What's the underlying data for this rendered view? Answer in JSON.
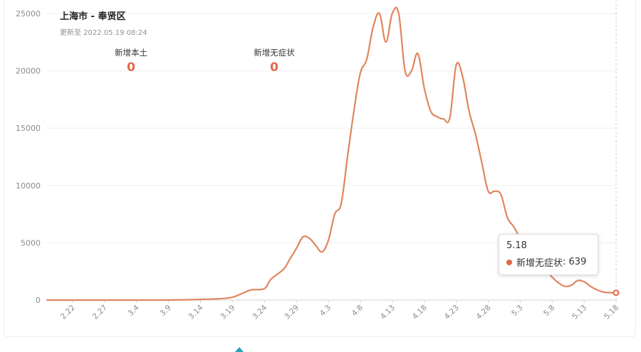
{
  "header": {
    "title": "上海市 - 奉贤区",
    "updated": "更新至 2022.05.19 08:24"
  },
  "stats": [
    {
      "label": "新增本土",
      "value": "0"
    },
    {
      "label": "新增无症状",
      "value": "0"
    }
  ],
  "tooltip": {
    "date": "5.18",
    "series_label": "新增无症状",
    "value_text": "639"
  },
  "colors": {
    "line": "#e0855e",
    "accent": "#e0684b",
    "grid": "#efefef",
    "axis_text": "#8a8a8a"
  },
  "chart_data": {
    "type": "line",
    "yticks": [
      0,
      5000,
      10000,
      15000,
      20000,
      25000
    ],
    "ylim": [
      0,
      25000
    ],
    "xticks": [
      "2.22",
      "2.27",
      "3.4",
      "3.9",
      "3.14",
      "3.19",
      "3.24",
      "3.29",
      "4.3",
      "4.8",
      "4.13",
      "4.18",
      "4.23",
      "4.28",
      "5.3",
      "5.8",
      "5.13",
      "5.18"
    ],
    "grid": true,
    "series": [
      {
        "name": "新增无症状",
        "points": [
          [
            "2.18",
            0
          ],
          [
            "2.22",
            0
          ],
          [
            "2.27",
            0
          ],
          [
            "3.1",
            0
          ],
          [
            "3.4",
            0
          ],
          [
            "3.9",
            10
          ],
          [
            "3.12",
            30
          ],
          [
            "3.14",
            60
          ],
          [
            "3.17",
            120
          ],
          [
            "3.19",
            250
          ],
          [
            "3.21",
            700
          ],
          [
            "3.22",
            900
          ],
          [
            "3.24",
            1000
          ],
          [
            "3.25",
            1800
          ],
          [
            "3.27",
            2700
          ],
          [
            "3.28",
            3600
          ],
          [
            "3.29",
            4500
          ],
          [
            "3.30",
            5500
          ],
          [
            "3.31",
            5400
          ],
          [
            "4.1",
            4800
          ],
          [
            "4.2",
            4200
          ],
          [
            "4.3",
            5200
          ],
          [
            "4.4",
            7500
          ],
          [
            "4.5",
            8400
          ],
          [
            "4.6",
            12500
          ],
          [
            "4.7",
            16500
          ],
          [
            "4.8",
            19800
          ],
          [
            "4.9",
            21000
          ],
          [
            "4.10",
            23800
          ],
          [
            "4.11",
            25000
          ],
          [
            "4.12",
            22500
          ],
          [
            "4.13",
            25000
          ],
          [
            "4.14",
            25000
          ],
          [
            "4.15",
            20000
          ],
          [
            "4.16",
            20000
          ],
          [
            "4.17",
            21500
          ],
          [
            "4.18",
            18500
          ],
          [
            "4.19",
            16500
          ],
          [
            "4.20",
            16000
          ],
          [
            "4.21",
            15800
          ],
          [
            "4.22",
            15900
          ],
          [
            "4.23",
            20500
          ],
          [
            "4.24",
            19500
          ],
          [
            "4.25",
            16500
          ],
          [
            "4.26",
            14500
          ],
          [
            "4.27",
            12000
          ],
          [
            "4.28",
            9500
          ],
          [
            "4.29",
            9500
          ],
          [
            "4.30",
            9200
          ],
          [
            "5.1",
            7200
          ],
          [
            "5.2",
            6400
          ],
          [
            "5.3",
            5400
          ],
          [
            "5.4",
            4700
          ],
          [
            "5.5",
            4000
          ],
          [
            "5.6",
            3300
          ],
          [
            "5.7",
            2700
          ],
          [
            "5.8",
            2000
          ],
          [
            "5.9",
            1500
          ],
          [
            "5.10",
            1200
          ],
          [
            "5.11",
            1300
          ],
          [
            "5.12",
            1700
          ],
          [
            "5.13",
            1600
          ],
          [
            "5.14",
            1200
          ],
          [
            "5.15",
            900
          ],
          [
            "5.16",
            700
          ],
          [
            "5.17",
            650
          ],
          [
            "5.18",
            639
          ]
        ]
      }
    ],
    "highlight": {
      "date": "5.18",
      "value": 639
    }
  }
}
